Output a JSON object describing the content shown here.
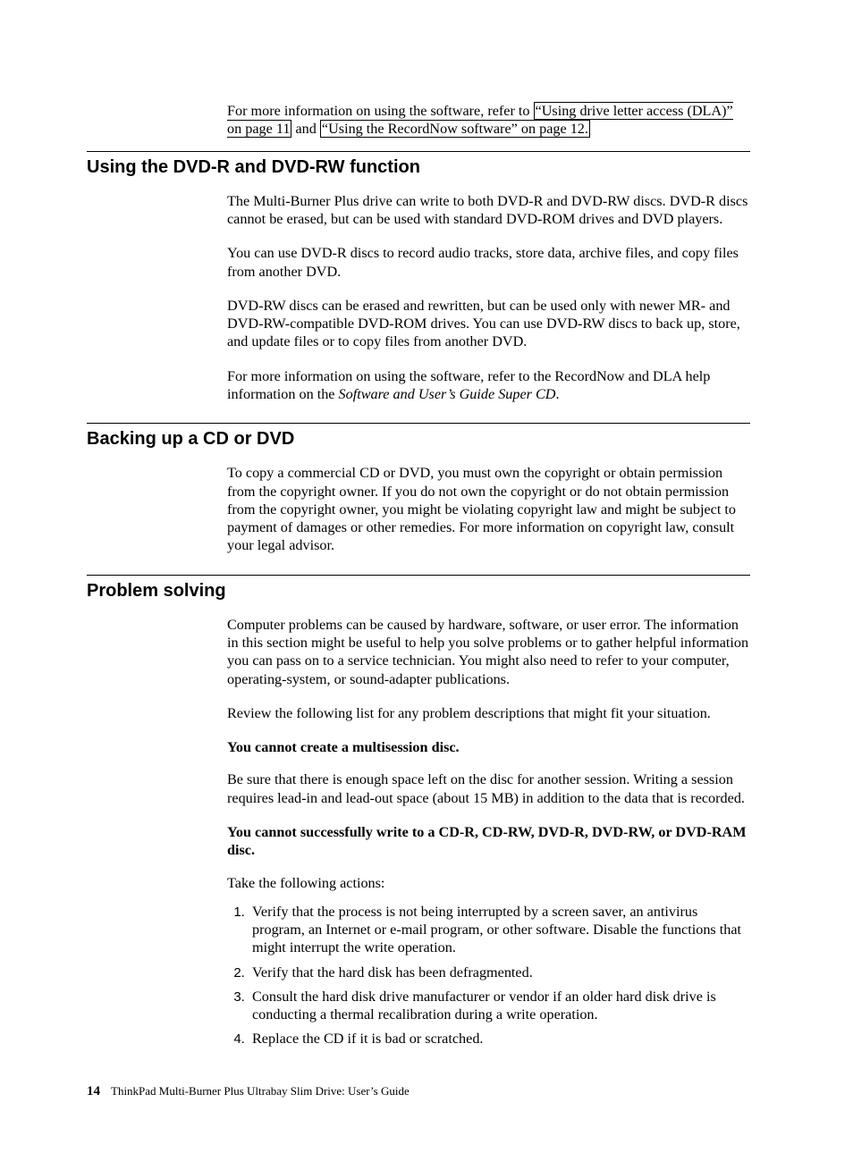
{
  "intro": {
    "prefix": "For more information on using the software, refer to ",
    "link1": "“Using drive letter access (DLA)” on page 11",
    "mid": " and ",
    "link2": "“Using the RecordNow software” on page 12."
  },
  "section1": {
    "heading": "Using the DVD-R and DVD-RW function",
    "p1": "The Multi-Burner Plus drive can write to both DVD-R and DVD-RW discs. DVD-R discs cannot be erased, but can be used with standard DVD-ROM drives and DVD players.",
    "p2": "You can use DVD-R discs to record audio tracks, store data, archive files, and copy files from another DVD.",
    "p3": "DVD-RW discs can be erased and rewritten, but can be used only with newer MR- and DVD-RW-compatible DVD-ROM drives. You can use DVD-RW discs to back up, store, and update files or to copy files from another DVD.",
    "p4_prefix": "For more information on using the software, refer to the RecordNow and DLA help information on the ",
    "p4_italic": "Software and User’s Guide Super CD",
    "p4_suffix": "."
  },
  "section2": {
    "heading": "Backing up a CD or DVD",
    "p1": "To copy a commercial CD or DVD, you must own the copyright or obtain permission from the copyright owner. If you do not own the copyright or do not obtain permission from the copyright owner, you might be violating copyright law and might be subject to payment of damages or other remedies. For more information on copyright law, consult your legal advisor."
  },
  "section3": {
    "heading": "Problem solving",
    "p1": "Computer problems can be caused by hardware, software, or user error. The information in this section might be useful to help you solve problems or to gather helpful information you can pass on to a service technician. You might also need to refer to your computer, operating-system, or sound-adapter publications.",
    "p2": "Review the following list for any problem descriptions that might fit your situation.",
    "sub1_title": "You cannot create a multisession disc.",
    "sub1_body": "Be sure that there is enough space left on the disc for another session. Writing a session requires lead-in and lead-out space (about 15 MB) in addition to the data that is recorded.",
    "sub2_title": "You cannot successfully write to a CD-R, CD-RW, DVD-R, DVD-RW, or DVD-RAM disc.",
    "sub2_lead": "Take the following actions:",
    "steps": [
      "Verify that the process is not being interrupted by a screen saver, an antivirus program, an Internet or e-mail program, or other software. Disable the functions that might interrupt the write operation.",
      "Verify that the hard disk has been defragmented.",
      "Consult the hard disk drive manufacturer or vendor if an older hard disk drive is conducting a thermal recalibration during a write operation.",
      "Replace the CD if it is bad or scratched."
    ]
  },
  "footer": {
    "page": "14",
    "title": "ThinkPad Multi-Burner Plus Ultrabay Slim Drive: User’s Guide"
  }
}
